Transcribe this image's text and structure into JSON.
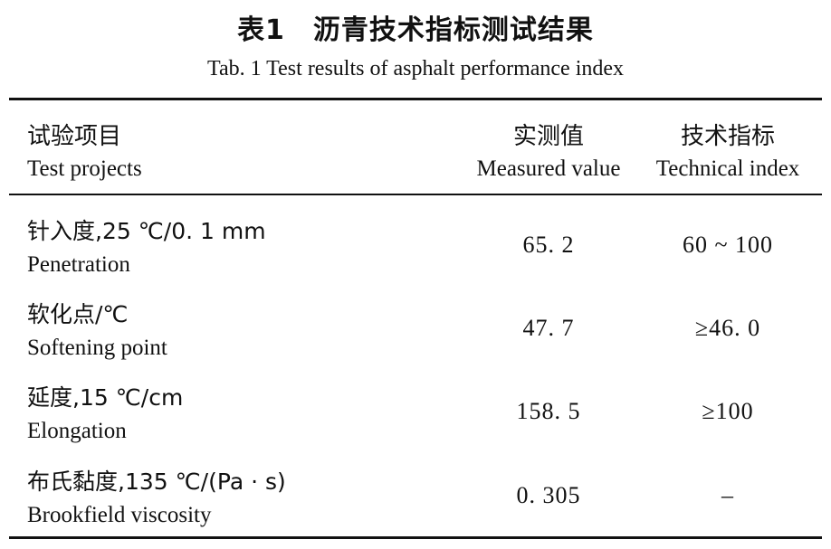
{
  "caption": {
    "title_cn": "表1　沥青技术指标测试结果",
    "title_en": "Tab. 1 Test results of asphalt performance index"
  },
  "table": {
    "headers": [
      {
        "cn": "试验项目",
        "en": "Test projects"
      },
      {
        "cn": "实测值",
        "en": "Measured value"
      },
      {
        "cn": "技术指标",
        "en": "Technical index"
      }
    ],
    "rows": [
      {
        "item_cn": "针入度,25 ℃/0. 1 mm",
        "item_en": "Penetration",
        "measured": "65. 2",
        "technical": "60 ~ 100"
      },
      {
        "item_cn": "软化点/℃",
        "item_en": "Softening point",
        "measured": "47. 7",
        "technical": "≥46. 0"
      },
      {
        "item_cn": "延度,15 ℃/cm",
        "item_en": "Elongation",
        "measured": "158. 5",
        "technical": "≥100"
      },
      {
        "item_cn": "布氏黏度,135 ℃/(Pa · s)",
        "item_en": "Brookfield viscosity",
        "measured": "0. 305",
        "technical": "–"
      }
    ]
  }
}
